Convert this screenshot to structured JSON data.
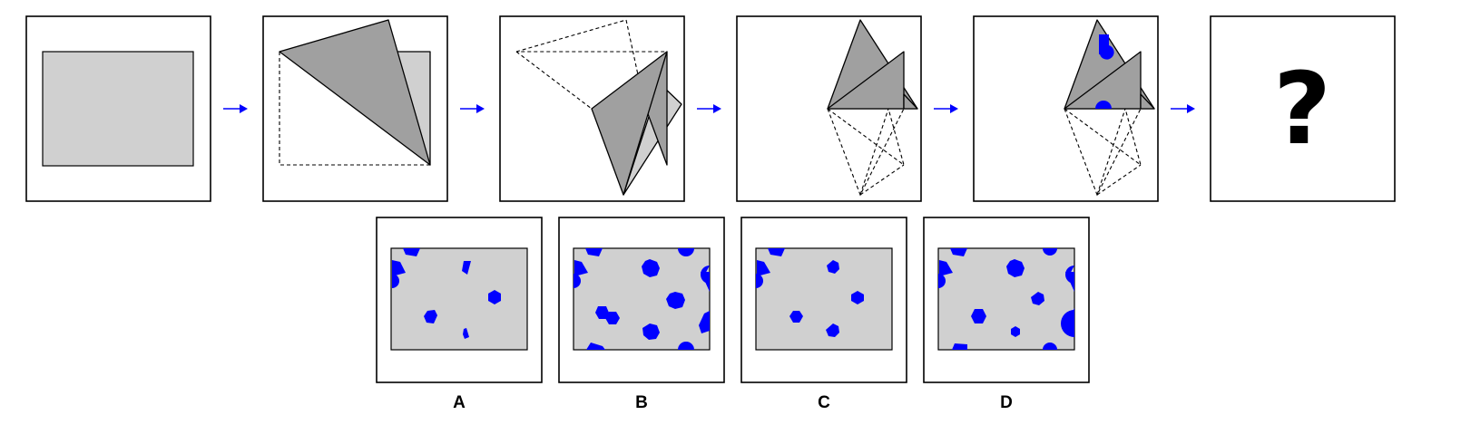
{
  "puzzle": {
    "unknown_symbol": "?",
    "options": [
      {
        "label": "A"
      },
      {
        "label": "B"
      },
      {
        "label": "C"
      },
      {
        "label": "D"
      }
    ]
  },
  "colors": {
    "paper": "#d0d0d0",
    "folded_flap": "#a0a0a0",
    "holes": "#0000ff",
    "arrows": "#0000ff"
  }
}
